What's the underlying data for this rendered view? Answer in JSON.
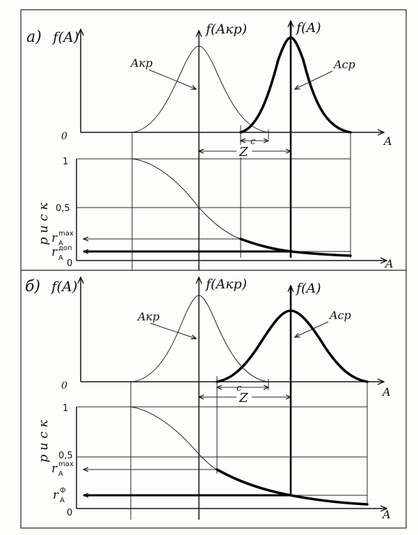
{
  "panels": [
    {
      "id": "a",
      "label": "а)",
      "density_axis": "f(A)",
      "crit_axis": "f(Aкр)",
      "mean_axis": "f(A)",
      "crit_curve": "Aкр",
      "mean_curve": "Aср",
      "zero": "0",
      "x_axis": "A",
      "c_label": "c",
      "z_label": "Z",
      "risk_one": "1",
      "risk_half": "0,5",
      "risk_max": "r",
      "risk_max_sup": "max",
      "risk_max_sub": "A",
      "risk_second": "r",
      "risk_second_sup": "доп",
      "risk_second_sub": "A",
      "risk_zero": "0",
      "risk_axis_word": "р и с к"
    },
    {
      "id": "b",
      "label": "б)",
      "density_axis": "f(A)",
      "crit_axis": "f(Aкр)",
      "mean_axis": "f(A)",
      "crit_curve": "Aкр",
      "mean_curve": "Aср",
      "zero": "0",
      "x_axis": "A",
      "c_label": "c",
      "z_label": "Z",
      "risk_one": "1",
      "risk_half": "0,5",
      "risk_max": "r",
      "risk_max_sup": "max",
      "risk_max_sub": "A",
      "risk_second": "r",
      "risk_second_sup": "ф",
      "risk_second_sub": "A",
      "risk_zero": "0",
      "risk_axis_word": "р и с к"
    }
  ]
}
